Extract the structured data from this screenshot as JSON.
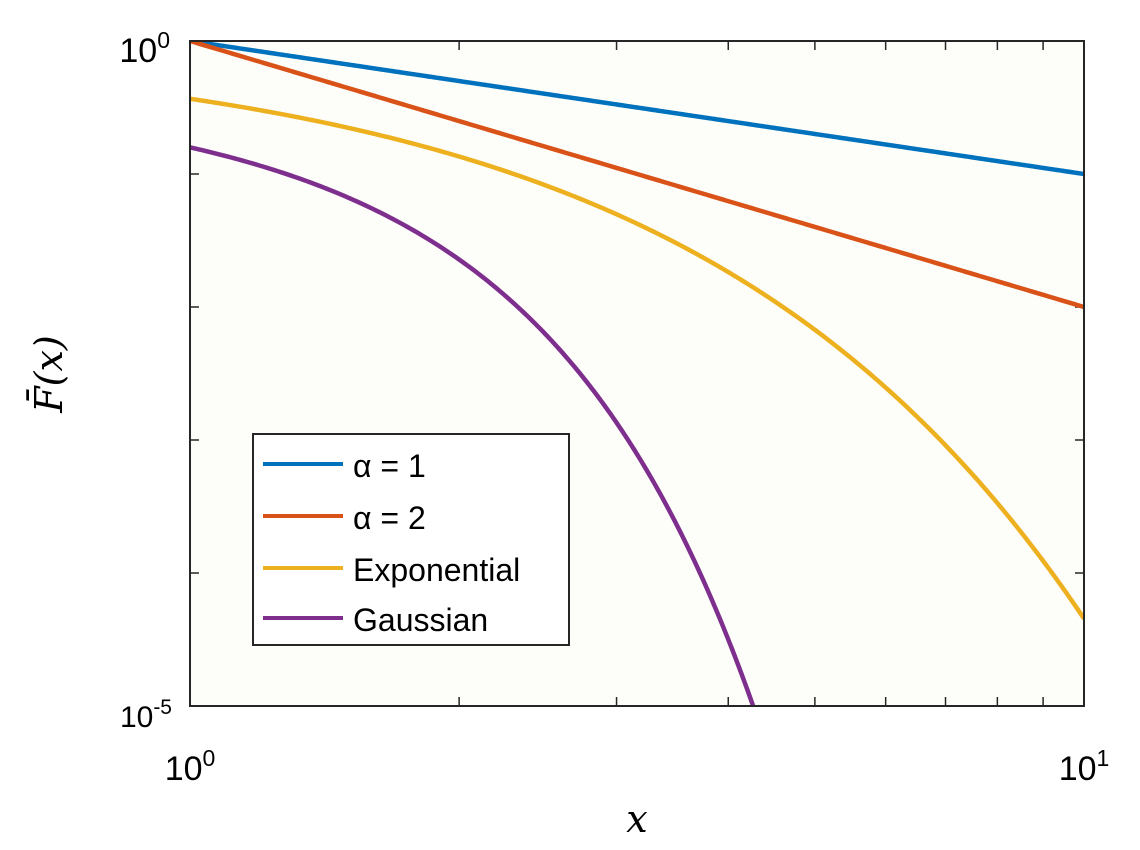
{
  "chart_data": {
    "type": "line",
    "title": "",
    "xlabel": "x",
    "ylabel": "F̄(x)",
    "xscale": "log",
    "yscale": "log",
    "xlim": [
      1,
      10
    ],
    "ylim": [
      1e-05,
      1
    ],
    "x_ticks": [
      {
        "base": "10",
        "exp": "0"
      },
      {
        "base": "10",
        "exp": "1"
      }
    ],
    "y_ticks": [
      {
        "base": "10",
        "exp": "0"
      },
      {
        "base": "10",
        "exp": "-5"
      }
    ],
    "grid": false,
    "legend_position": "lower-left",
    "series": [
      {
        "name": "α = 1",
        "color": "#0072BD",
        "x": [
          1,
          2,
          3,
          4,
          5,
          6,
          7,
          8,
          9,
          10
        ],
        "y": [
          1,
          0.5,
          0.333,
          0.25,
          0.2,
          0.167,
          0.143,
          0.125,
          0.111,
          0.1
        ]
      },
      {
        "name": "α = 2",
        "color": "#D95319",
        "x": [
          1,
          2,
          3,
          4,
          5,
          6,
          7,
          8,
          9,
          10
        ],
        "y": [
          1,
          0.25,
          0.111,
          0.0625,
          0.04,
          0.0278,
          0.0204,
          0.0156,
          0.0123,
          0.01
        ]
      },
      {
        "name": "Exponential",
        "color": "#EDB120",
        "x": [
          1,
          2,
          3,
          4,
          5,
          6,
          7,
          8,
          9,
          10
        ],
        "y": [
          0.368,
          0.135,
          0.0498,
          0.0183,
          0.00674,
          0.00248,
          0.000912,
          0.000335,
          0.000123,
          4.54e-05
        ]
      },
      {
        "name": "Gaussian",
        "color": "#7E2F8E",
        "x": [
          1,
          1.5,
          2,
          2.5,
          3,
          3.5,
          4,
          4.3
        ],
        "y": [
          0.159,
          0.0668,
          0.0228,
          0.00621,
          0.00135,
          0.000233,
          3.17e-05,
          8.5e-06
        ]
      }
    ]
  }
}
